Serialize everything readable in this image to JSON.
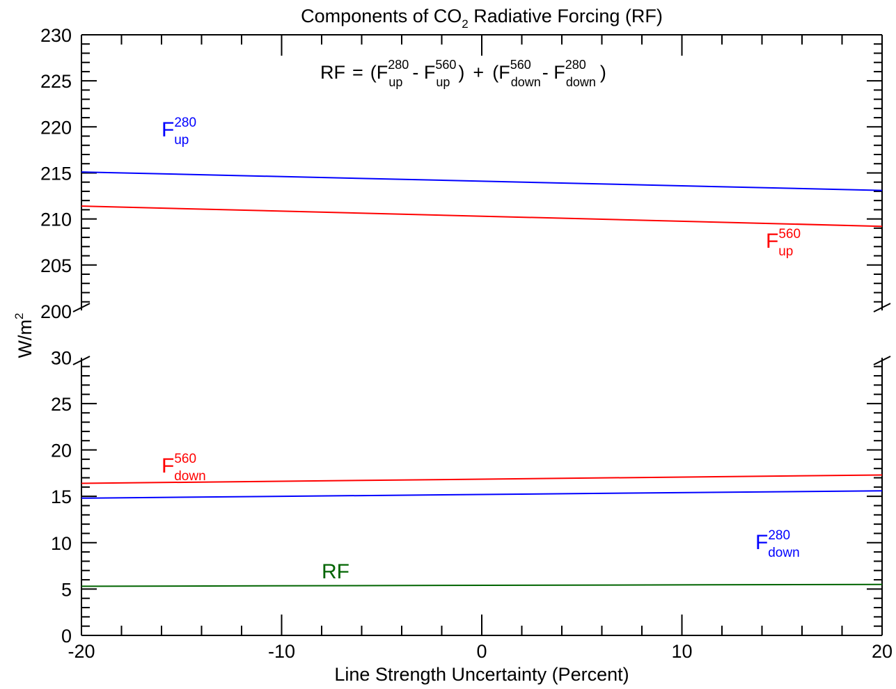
{
  "chart_data": {
    "type": "line",
    "title": {
      "pre": "Components of CO",
      "sub": "2",
      "post": " Radiative Forcing (RF)"
    },
    "xlabel": "Line Strength Uncertainty (Percent)",
    "ylabel": {
      "base": "W/m",
      "sup": "2"
    },
    "axis_break": true,
    "xlim": [
      -20,
      20
    ],
    "x_ticks": [
      -20,
      -10,
      0,
      10,
      20
    ],
    "x_tick_labels": [
      "-20",
      "-10",
      "0",
      "10",
      "20"
    ],
    "upper_panel": {
      "ylim": [
        197.5,
        230
      ],
      "y_ticks": [
        200,
        205,
        210,
        215,
        220,
        225,
        230
      ],
      "y_tick_labels": [
        "200",
        "205",
        "210",
        "215",
        "220",
        "225",
        "230"
      ]
    },
    "lower_panel": {
      "ylim": [
        0,
        32.5
      ],
      "y_ticks": [
        0,
        5,
        10,
        15,
        20,
        25,
        30
      ],
      "y_tick_labels": [
        "0",
        "5",
        "10",
        "15",
        "20",
        "25",
        "30"
      ]
    },
    "equation": {
      "lhs": "RF",
      "eq": "=",
      "open1": "(F",
      "t1_sup": "280",
      "t1_sub": "up",
      "minus1": "- F",
      "t2_sup": "560",
      "t2_sub": "up",
      "close1": ")",
      "plus": "+",
      "open2": "(F",
      "t3_sup": "560",
      "t3_sub": "down",
      "minus2": "- F",
      "t4_sup": "280",
      "t4_sub": "down",
      "close2": ")"
    },
    "series": [
      {
        "id": "f_up_280",
        "panel": "upper",
        "color": "#0000ff",
        "x": [
          -20,
          20
        ],
        "y": [
          215.1,
          213.1
        ],
        "label": {
          "base": "F",
          "sup": "280",
          "sub": "up"
        }
      },
      {
        "id": "f_up_560",
        "panel": "upper",
        "color": "#ff0000",
        "x": [
          -20,
          20
        ],
        "y": [
          211.4,
          209.2
        ],
        "label": {
          "base": "F",
          "sup": "560",
          "sub": "up"
        }
      },
      {
        "id": "f_down_560",
        "panel": "lower",
        "color": "#ff0000",
        "x": [
          -20,
          20
        ],
        "y": [
          16.4,
          17.3
        ],
        "label": {
          "base": "F",
          "sup": "560",
          "sub": "down"
        }
      },
      {
        "id": "f_down_280",
        "panel": "lower",
        "color": "#0000ff",
        "x": [
          -20,
          20
        ],
        "y": [
          14.8,
          15.6
        ],
        "label": {
          "base": "F",
          "sup": "280",
          "sub": "down"
        }
      },
      {
        "id": "rf",
        "panel": "lower",
        "color": "#006400",
        "x": [
          -20,
          20
        ],
        "y": [
          5.3,
          5.5
        ],
        "label": {
          "base": "RF",
          "sup": "",
          "sub": ""
        }
      }
    ]
  }
}
